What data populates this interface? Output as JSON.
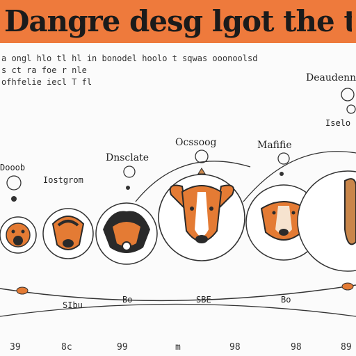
{
  "title": "Dangre desg lgot the tre the be",
  "intro_lines": [
    "a ongl hlo tl hl in bonodel hoolo t sqwas ooonoolsd",
    "s ct ra foe r nle",
    "ofhfelie iecl T fl"
  ],
  "stage_labels": {
    "top_right": "Deaudenno",
    "top_right_sub": "Iselo",
    "mid_left": "Ocssoog",
    "mid_right": "Mafifie",
    "left_a": "Dooob",
    "left_b": "Iostgrom",
    "center_top": "Dnsclate"
  },
  "bottom_labels": [
    "SIbu",
    "Bo",
    "SBE",
    "Bo"
  ],
  "footer_marks": [
    "39",
    "8c",
    "99",
    "m",
    "98",
    "98",
    "89"
  ],
  "colors": {
    "banner": "#ee7a3c",
    "accent": "#e47b34",
    "dark": "#2a2a2a",
    "tan": "#c9864a"
  }
}
